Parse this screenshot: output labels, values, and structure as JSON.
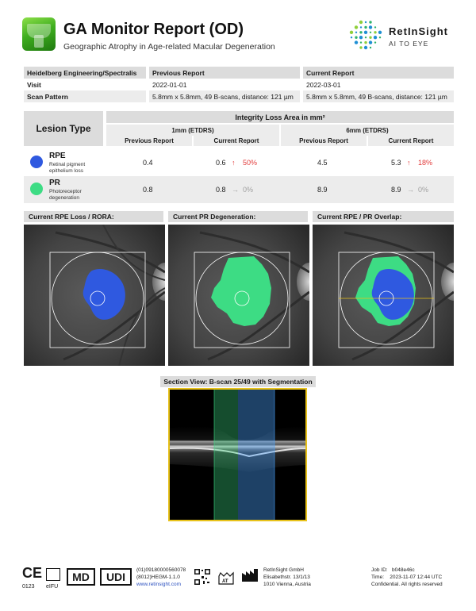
{
  "header": {
    "title": "GA Monitor Report (OD)",
    "subtitle": "Geographic Atrophy in Age-related Macular Degeneration",
    "brand_name": "RetInSight",
    "brand_tagline": "AI TO EYE"
  },
  "info_table": {
    "device": "Heidelberg Engineering/Spectralis",
    "previous_header": "Previous Report",
    "current_header": "Current Report",
    "visit_label": "Visit",
    "previous_visit": "2022-01-01",
    "current_visit": "2022-03-01",
    "scan_label": "Scan Pattern",
    "previous_scan": "5.8mm x 5.8mm, 49 B-scans, distance: 121 µm",
    "current_scan": "5.8mm x 5.8mm, 49 B-scans, distance: 121 µm"
  },
  "lesion_table": {
    "lesion_type_header": "Lesion Type",
    "integrity_header": "Integrity Loss Area in mm²",
    "group_1mm": "1mm (ETDRS)",
    "group_6mm": "6mm (ETDRS)",
    "previous_label": "Previous Report",
    "current_label": "Current Report",
    "rows": [
      {
        "name": "RPE",
        "description": "Retinal pigment epithelium loss",
        "color": "#2f59e0",
        "prev_1mm": "0.4",
        "curr_1mm": "0.6",
        "chg_1mm_arrow": "↑",
        "chg_1mm": "50%",
        "prev_6mm": "4.5",
        "curr_6mm": "5.3",
        "chg_6mm_arrow": "↑",
        "chg_6mm": "18%"
      },
      {
        "name": "PR",
        "description": "Photoreceptor degeneration",
        "color": "#3ddc84",
        "prev_1mm": "0.8",
        "curr_1mm": "0.8",
        "chg_1mm_arrow": "→",
        "chg_1mm": "0%",
        "prev_6mm": "8.9",
        "curr_6mm": "8.9",
        "chg_6mm_arrow": "→",
        "chg_6mm": "0%"
      }
    ]
  },
  "panels": {
    "rpe_label": "Current RPE Loss / RORA:",
    "pr_label": "Current PR Degeneration:",
    "overlap_label": "Current RPE / PR Overlap:",
    "section_label": "Section View: B-scan 25/49 with Segmentation"
  },
  "footer": {
    "ce_mark": "CE",
    "ce_number": "0123",
    "eifu": "eIFU",
    "md": "MD",
    "udi": "UDI",
    "udi_line1": "(01)09180000560078",
    "udi_line2": "(8012)HEGM-1.1.0",
    "udi_link": "www.retinsight.com",
    "at_text": "AT",
    "manufacturer_line1": "RetInSight GmbH",
    "manufacturer_line2": "Elisabethstr. 13/1/13",
    "manufacturer_line3": "1010 Vienna, Austria",
    "job_id": "Job ID:   b048e46c",
    "time": "Time:    2023-11-07 12:44 UTC",
    "rights": "Confidential. All rights reserved"
  }
}
